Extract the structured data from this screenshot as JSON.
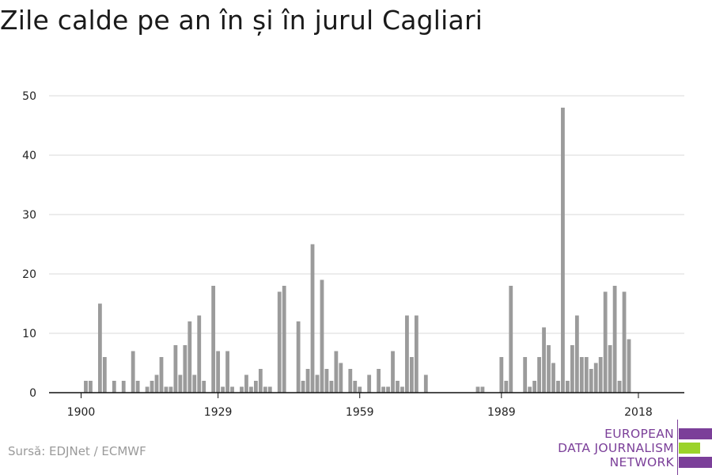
{
  "title": "Zile calde pe an în și în jurul Cagliari",
  "source": "Sursă: EDJNet / ECMWF",
  "logo": {
    "lines": [
      "EUROPEAN",
      "DATA JOURNALISM",
      "NETWORK"
    ],
    "colors": {
      "purple": "#7b3f99",
      "green": "#9bd32a"
    }
  },
  "colors": {
    "bar": "#9b9b9b",
    "grid": "#d9d9d9",
    "axis": "#111111"
  },
  "chart_data": {
    "type": "bar",
    "title": "Zile calde pe an în și în jurul Cagliari",
    "xlabel": "",
    "ylabel": "",
    "ylim": [
      0,
      50
    ],
    "y_ticks": [
      0,
      10,
      20,
      30,
      40,
      50
    ],
    "x_ticks": [
      1900,
      1929,
      1959,
      1989,
      2018
    ],
    "grid": true,
    "series": [
      {
        "x": [
          1901,
          1902,
          1904,
          1905,
          1907,
          1909,
          1911,
          1912,
          1914,
          1915,
          1916,
          1917,
          1918,
          1919,
          1920,
          1921,
          1922,
          1923,
          1924,
          1925,
          1926,
          1928,
          1929,
          1930,
          1931,
          1932,
          1934,
          1935,
          1936,
          1937,
          1938,
          1939,
          1940,
          1942,
          1943,
          1946,
          1947,
          1948,
          1949,
          1950,
          1951,
          1952,
          1953,
          1954,
          1955,
          1957,
          1958,
          1959,
          1961,
          1963,
          1964,
          1965,
          1966,
          1967,
          1968,
          1969,
          1970,
          1971,
          1973,
          1984,
          1985,
          1989,
          1990,
          1991,
          1994,
          1995,
          1996,
          1997,
          1998,
          1999,
          2000,
          2001,
          2002,
          2003,
          2004,
          2005,
          2006,
          2007,
          2008,
          2009,
          2010,
          2011,
          2012,
          2013,
          2014,
          2015,
          2016,
          2017
        ],
        "values": [
          2,
          2,
          15,
          6,
          2,
          2,
          7,
          2,
          1,
          2,
          3,
          6,
          1,
          1,
          8,
          3,
          8,
          12,
          3,
          13,
          2,
          18,
          7,
          1,
          7,
          1,
          1,
          3,
          1,
          2,
          4,
          1,
          1,
          17,
          18,
          12,
          2,
          4,
          25,
          3,
          19,
          4,
          2,
          7,
          5,
          4,
          2,
          1,
          3,
          4,
          1,
          1,
          7,
          2,
          1,
          13,
          6,
          13,
          3,
          1,
          1,
          6,
          2,
          18,
          6,
          1,
          2,
          6,
          11,
          8,
          5,
          2,
          48,
          2,
          8,
          13,
          6,
          6,
          4,
          5,
          6,
          17,
          8,
          18,
          2,
          17,
          9,
          0
        ]
      }
    ]
  }
}
